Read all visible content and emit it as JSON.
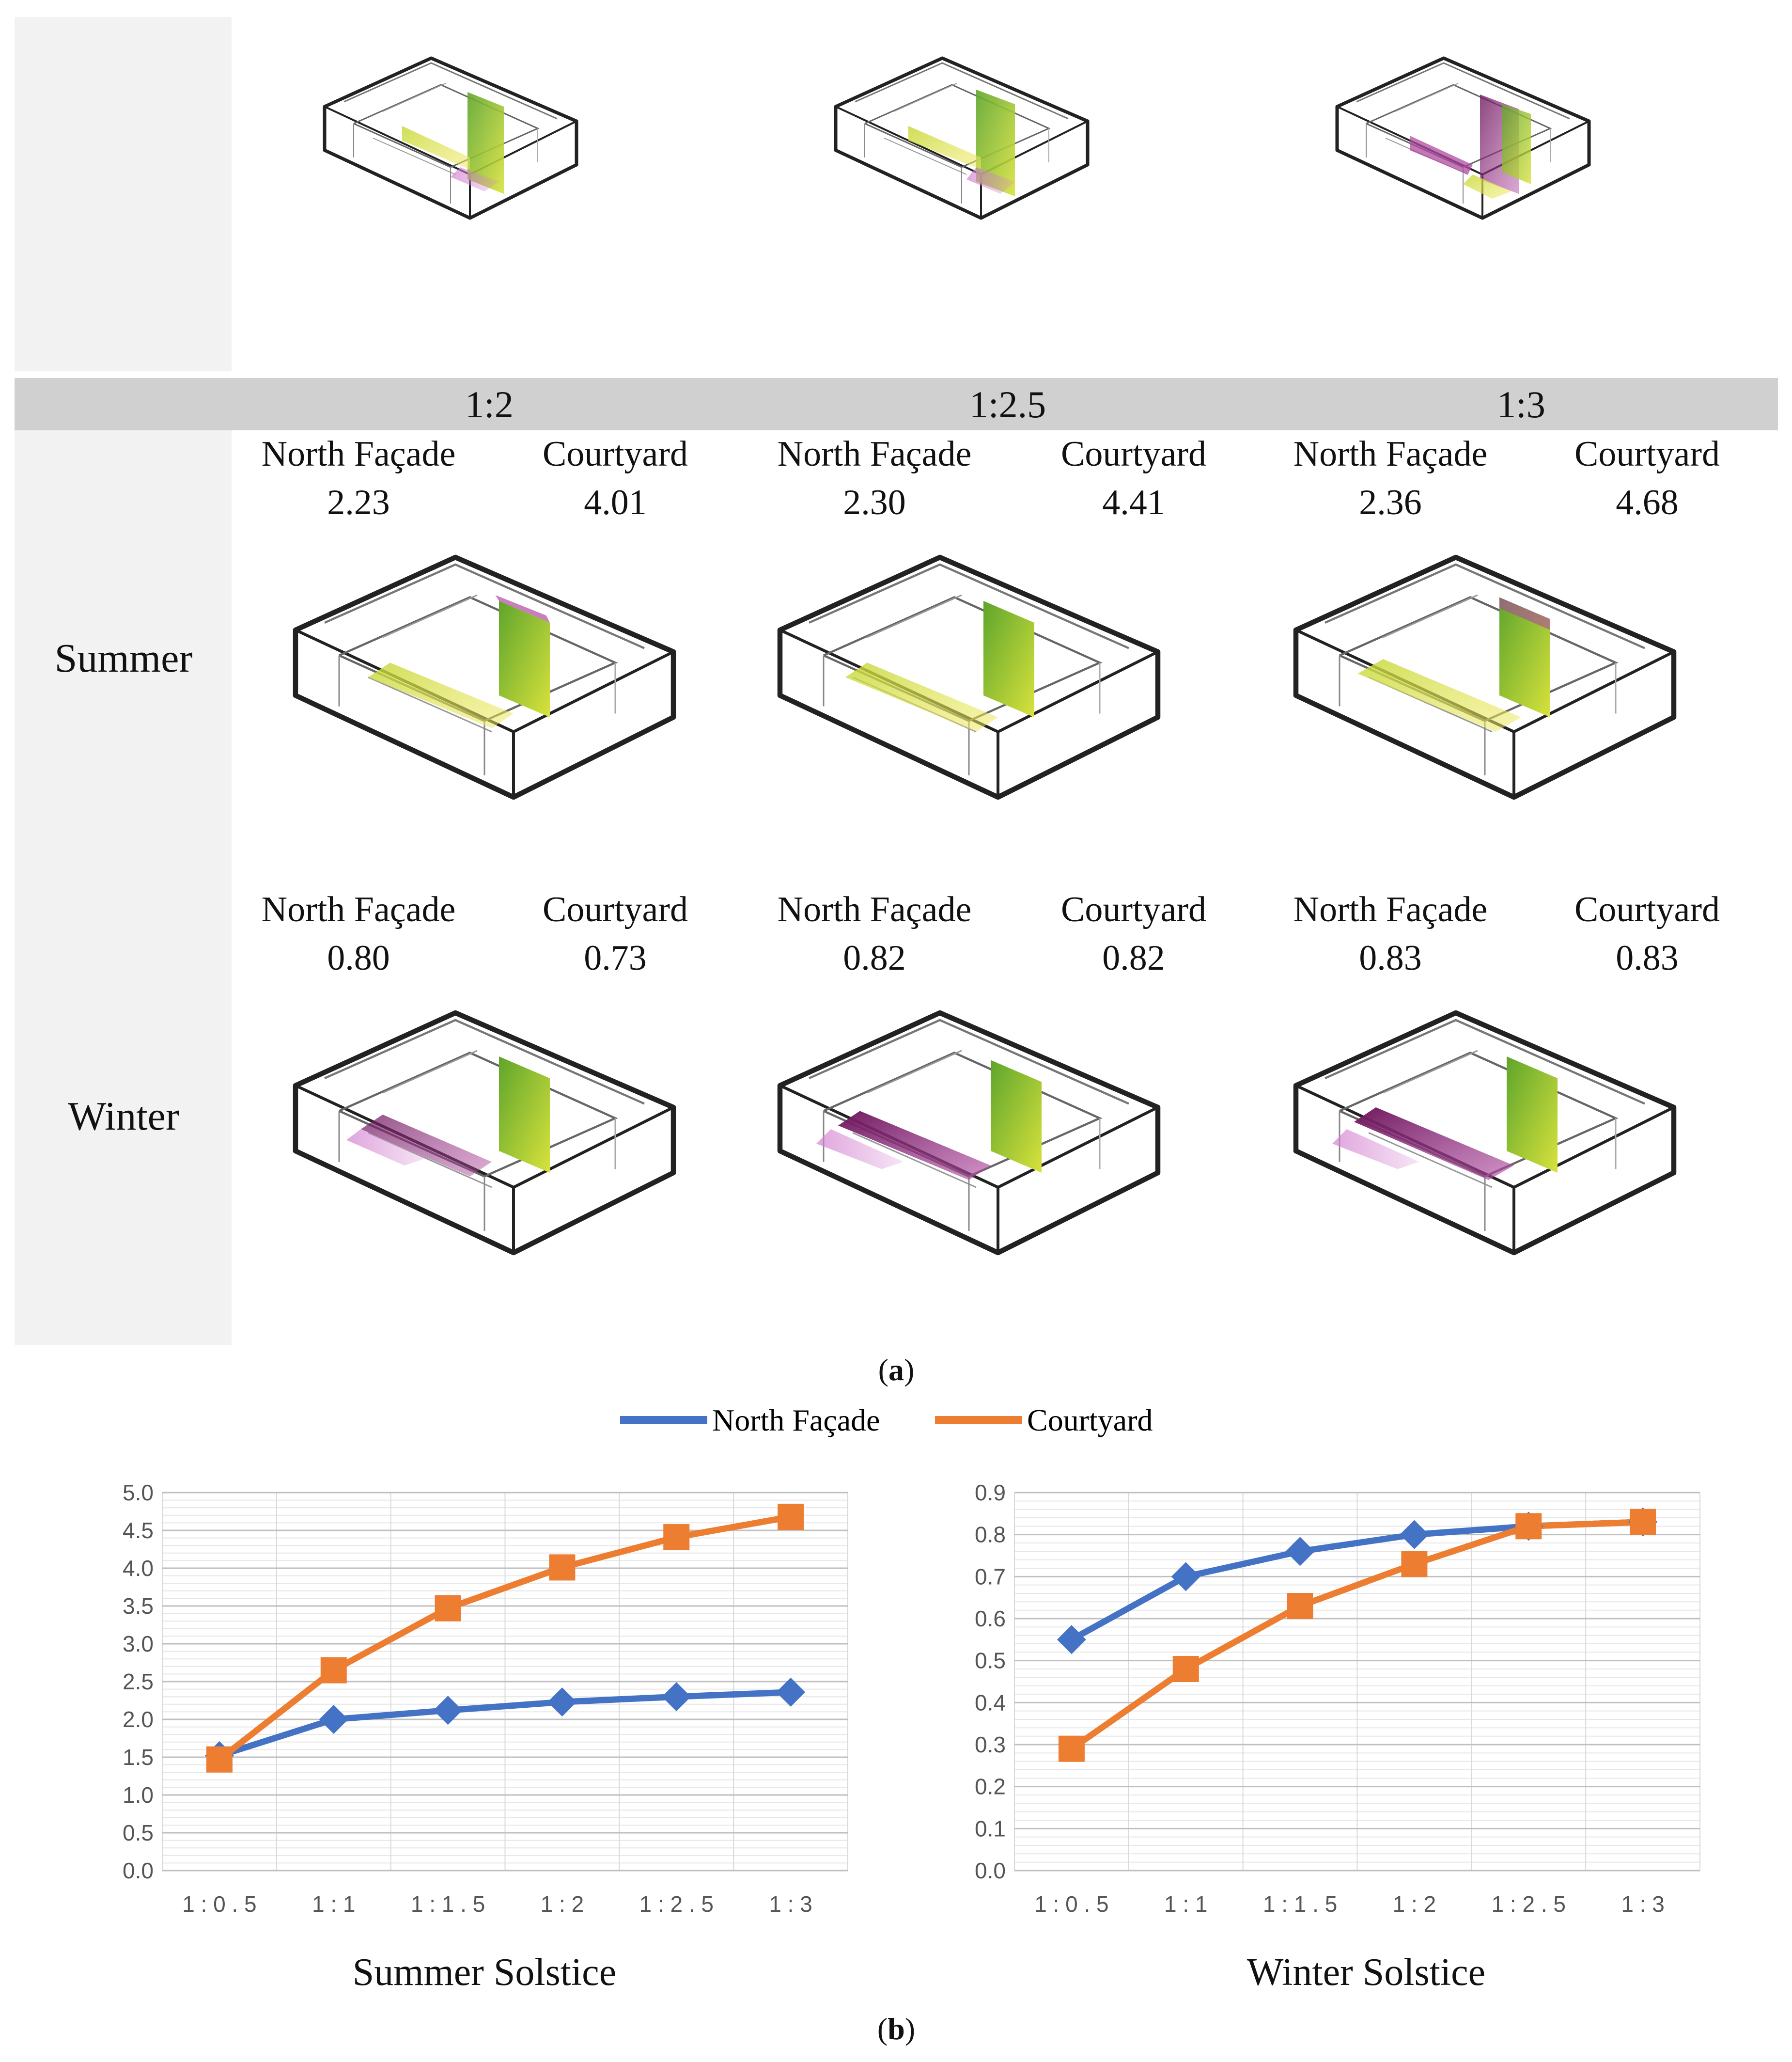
{
  "panel_a": {
    "caption": "a",
    "ratios": [
      "1:2",
      "1:2.5",
      "1:3"
    ],
    "seasons": [
      "Summer",
      "Winter"
    ],
    "column_labels": {
      "north": "North Façade",
      "courtyard": "Courtyard"
    },
    "summer_values": [
      {
        "north": "2.23",
        "courtyard": "4.01"
      },
      {
        "north": "2.30",
        "courtyard": "4.41"
      },
      {
        "north": "2.36",
        "courtyard": "4.68"
      }
    ],
    "winter_values": [
      {
        "north": "0.80",
        "courtyard": "0.73"
      },
      {
        "north": "0.82",
        "courtyard": "0.82"
      },
      {
        "north": "0.83",
        "courtyard": "0.83"
      }
    ]
  },
  "panel_b": {
    "caption": "b"
  },
  "colors": {
    "north": "#4472c4",
    "courtyard": "#ed7d31"
  },
  "chart_data": [
    {
      "type": "line",
      "title": "Summer Solstice",
      "categories": [
        "1 : 0 . 5",
        "1 : 1",
        "1 : 1 . 5",
        "1 : 2",
        "1 : 2 . 5",
        "1 : 3"
      ],
      "series": [
        {
          "name": "North Façade",
          "values": [
            1.52,
            2.0,
            2.12,
            2.23,
            2.3,
            2.36
          ]
        },
        {
          "name": "Courtyard",
          "values": [
            1.47,
            2.65,
            3.47,
            4.01,
            4.41,
            4.68
          ]
        }
      ],
      "ylim": [
        0,
        5
      ],
      "yticks": [
        "0.0",
        "0.5",
        "1.0",
        "1.5",
        "2.0",
        "2.5",
        "3.0",
        "3.5",
        "4.0",
        "4.5",
        "5.0"
      ],
      "legend": "top-center",
      "grid": true
    },
    {
      "type": "line",
      "title": "Winter Solstice",
      "categories": [
        "1 : 0 . 5",
        "1 : 1",
        "1 : 1 . 5",
        "1 : 2",
        "1 : 2 . 5",
        "1 : 3"
      ],
      "series": [
        {
          "name": "North Façade",
          "values": [
            0.55,
            0.7,
            0.76,
            0.8,
            0.82,
            0.83
          ]
        },
        {
          "name": "Courtyard",
          "values": [
            0.29,
            0.48,
            0.63,
            0.73,
            0.82,
            0.83
          ]
        }
      ],
      "ylim": [
        0,
        0.9
      ],
      "yticks": [
        "0.0",
        "0.1",
        "0.2",
        "0.3",
        "0.4",
        "0.5",
        "0.6",
        "0.7",
        "0.8",
        "0.9"
      ],
      "legend": "top-center",
      "grid": true
    }
  ]
}
